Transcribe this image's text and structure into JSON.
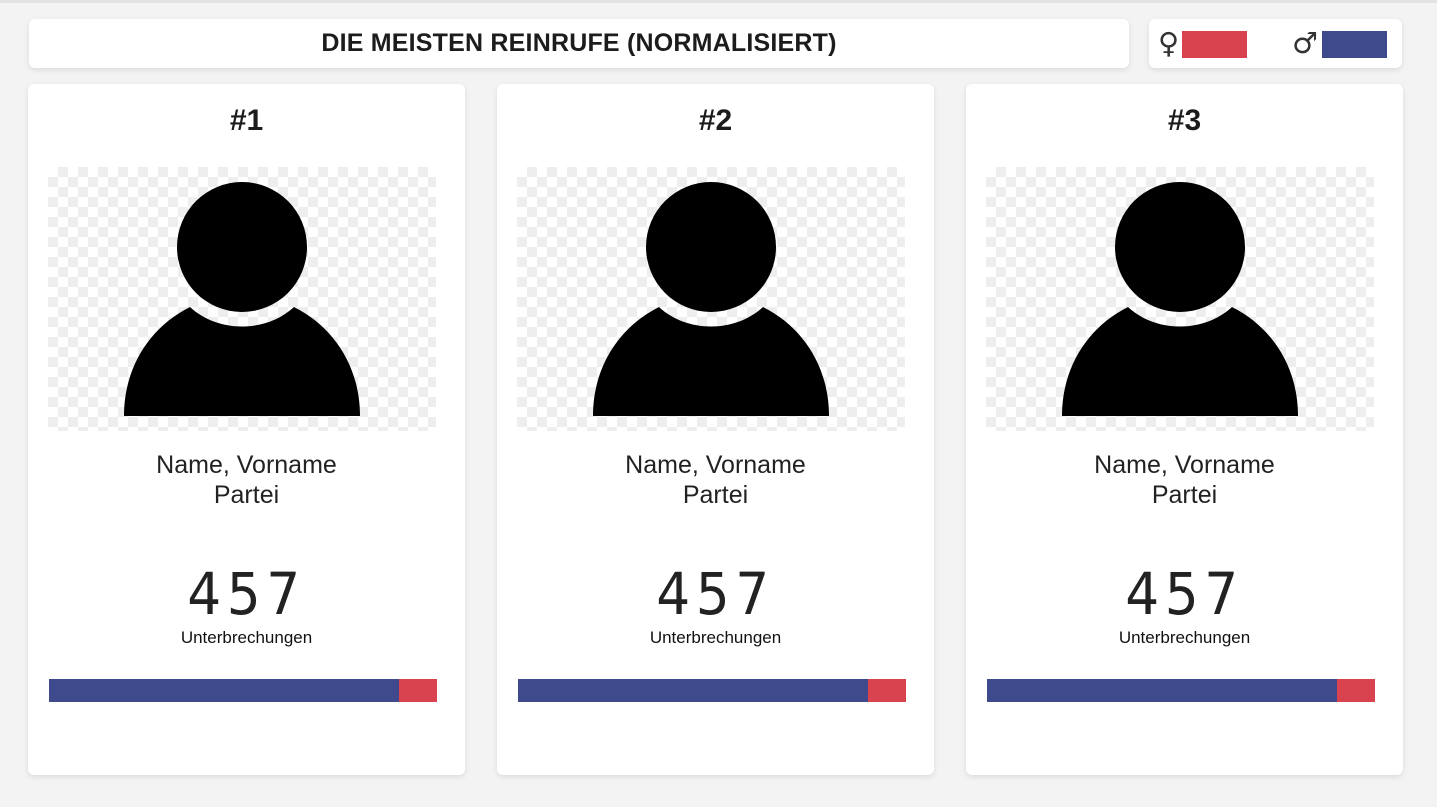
{
  "header": {
    "title": "DIE MEISTEN REINRUFE (NORMALISIERT)"
  },
  "legend": {
    "female_symbol": "♀",
    "female_color": "#d9434f",
    "male_symbol": "♂",
    "male_color": "#3f4a8c"
  },
  "cards": [
    {
      "rank": "#1",
      "name": "Name, Vorname",
      "party": "Partei",
      "count": "457",
      "unit": "Unterbrechungen",
      "male_share": 0.903,
      "female_share": 0.097
    },
    {
      "rank": "#2",
      "name": "Name, Vorname",
      "party": "Partei",
      "count": "457",
      "unit": "Unterbrechungen",
      "male_share": 0.903,
      "female_share": 0.097
    },
    {
      "rank": "#3",
      "name": "Name, Vorname",
      "party": "Partei",
      "count": "457",
      "unit": "Unterbrechungen",
      "male_share": 0.903,
      "female_share": 0.097
    }
  ],
  "icons": {
    "portrait": "user-silhouette-icon"
  }
}
